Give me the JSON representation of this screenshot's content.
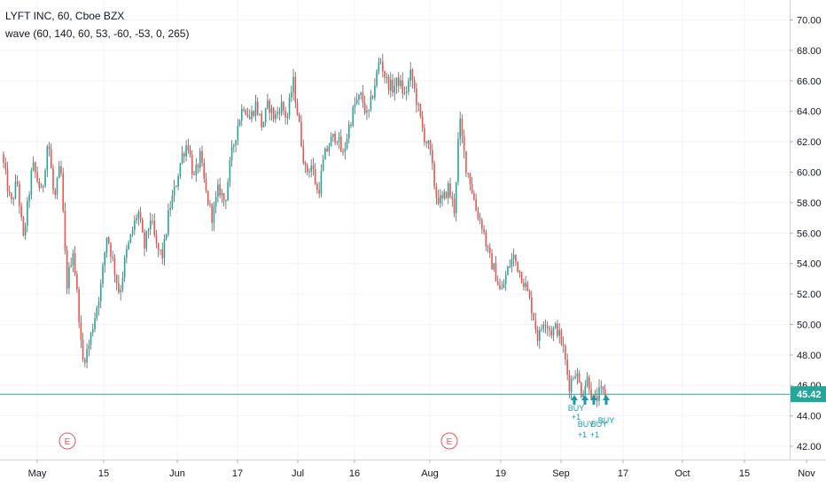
{
  "legend": {
    "title": "LYFT INC, 60, Cboe BZX",
    "indicator": "wave (60, 140, 60, 53, -60, -53, 0, 265)"
  },
  "colors": {
    "up": "#26a69a",
    "down": "#ef5350",
    "wick": "#4a4a4a",
    "price_line": "#26a69a",
    "price_tag": "#26a69a",
    "signal": "#1a9aa8",
    "earnings": "#e0595e",
    "grid": "#f0f3fa",
    "axis": "#131722"
  },
  "chart_data": {
    "type": "candlestick",
    "title": "LYFT INC, 60, Cboe BZX",
    "y_axis": {
      "ticks": [
        "42.00",
        "44.00",
        "46.00",
        "48.00",
        "50.00",
        "52.00",
        "54.00",
        "56.00",
        "58.00",
        "60.00",
        "62.00",
        "64.00",
        "66.00",
        "68.00",
        "70.00"
      ],
      "range": [
        40.6,
        71.2
      ],
      "position": "right"
    },
    "x_axis": {
      "ticks": [
        "May",
        "15",
        "Jun",
        "17",
        "Jul",
        "16",
        "Aug",
        "19",
        "Sep",
        "17",
        "Oct",
        "15",
        "Nov"
      ],
      "data_range_days": [
        0,
        133
      ]
    },
    "last_price": "45.42",
    "last_price_value": 45.42,
    "price_path": [
      [
        0,
        61.2
      ],
      [
        1.5,
        57.8
      ],
      [
        2.5,
        59.5
      ],
      [
        3.5,
        55.5
      ],
      [
        5,
        60.5
      ],
      [
        6.5,
        58.5
      ],
      [
        7.5,
        62.3
      ],
      [
        8.5,
        58
      ],
      [
        9.5,
        60.6
      ],
      [
        10.5,
        52.5
      ],
      [
        11.5,
        55
      ],
      [
        12.5,
        50.5
      ],
      [
        13,
        47.5
      ],
      [
        14,
        48.5
      ],
      [
        15,
        50.5
      ],
      [
        16,
        52.5
      ],
      [
        17,
        56
      ],
      [
        18,
        54
      ],
      [
        19,
        52
      ],
      [
        20,
        54.5
      ],
      [
        21,
        56
      ],
      [
        22,
        57.5
      ],
      [
        23,
        55
      ],
      [
        24,
        57
      ],
      [
        25,
        55
      ],
      [
        26,
        54.5
      ],
      [
        27,
        57.5
      ],
      [
        28,
        59
      ],
      [
        29,
        61
      ],
      [
        30,
        62
      ],
      [
        31,
        59.5
      ],
      [
        32,
        61
      ],
      [
        33,
        58.5
      ],
      [
        34,
        57
      ],
      [
        35,
        59
      ],
      [
        36,
        58
      ],
      [
        37,
        61
      ],
      [
        38,
        63
      ],
      [
        39,
        64.5
      ],
      [
        40,
        63.5
      ],
      [
        41,
        64.5
      ],
      [
        42,
        63
      ],
      [
        43,
        64.5
      ],
      [
        44,
        63.5
      ],
      [
        45,
        64.5
      ],
      [
        46,
        63.5
      ],
      [
        47,
        66
      ],
      [
        48,
        63
      ],
      [
        49,
        60
      ],
      [
        50,
        60.5
      ],
      [
        51,
        58.5
      ],
      [
        52,
        61
      ],
      [
        53,
        62
      ],
      [
        54,
        62.5
      ],
      [
        55,
        61
      ],
      [
        56,
        63
      ],
      [
        57,
        64.5
      ],
      [
        58,
        65
      ],
      [
        59,
        63.5
      ],
      [
        60,
        65.5
      ],
      [
        61,
        67.5
      ],
      [
        62,
        66
      ],
      [
        63,
        65.5
      ],
      [
        64,
        66
      ],
      [
        65,
        65
      ],
      [
        66,
        66.5
      ],
      [
        67,
        64.5
      ],
      [
        68,
        62.5
      ],
      [
        69,
        61.5
      ],
      [
        70,
        58.5
      ],
      [
        71,
        58
      ],
      [
        72,
        59
      ],
      [
        73,
        57.5
      ],
      [
        73.8,
        63.5
      ],
      [
        74.8,
        60.5
      ],
      [
        75.5,
        59.5
      ],
      [
        76.5,
        57.5
      ],
      [
        77.5,
        56.5
      ],
      [
        78.5,
        54.5
      ],
      [
        79.5,
        53.5
      ],
      [
        80.5,
        52
      ],
      [
        81.5,
        53.5
      ],
      [
        82.5,
        54.5
      ],
      [
        83.5,
        53.5
      ],
      [
        84.5,
        52.5
      ],
      [
        85.5,
        51
      ],
      [
        86.5,
        49
      ],
      [
        87.5,
        50.5
      ],
      [
        88.5,
        49.5
      ],
      [
        89.5,
        49.8
      ],
      [
        90.5,
        48.5
      ],
      [
        91.5,
        46
      ],
      [
        92.5,
        47
      ],
      [
        93.5,
        45.5
      ],
      [
        94.5,
        46.5
      ],
      [
        95.5,
        44.8
      ],
      [
        96.5,
        45.6
      ],
      [
        97.2,
        45.4
      ]
    ],
    "signals": [
      "BUY",
      "BUY",
      "BUY",
      "BUY"
    ],
    "signal_sublabels": [
      "+1",
      "+1",
      "+1"
    ],
    "earnings_markers": [
      "E",
      "E"
    ]
  }
}
